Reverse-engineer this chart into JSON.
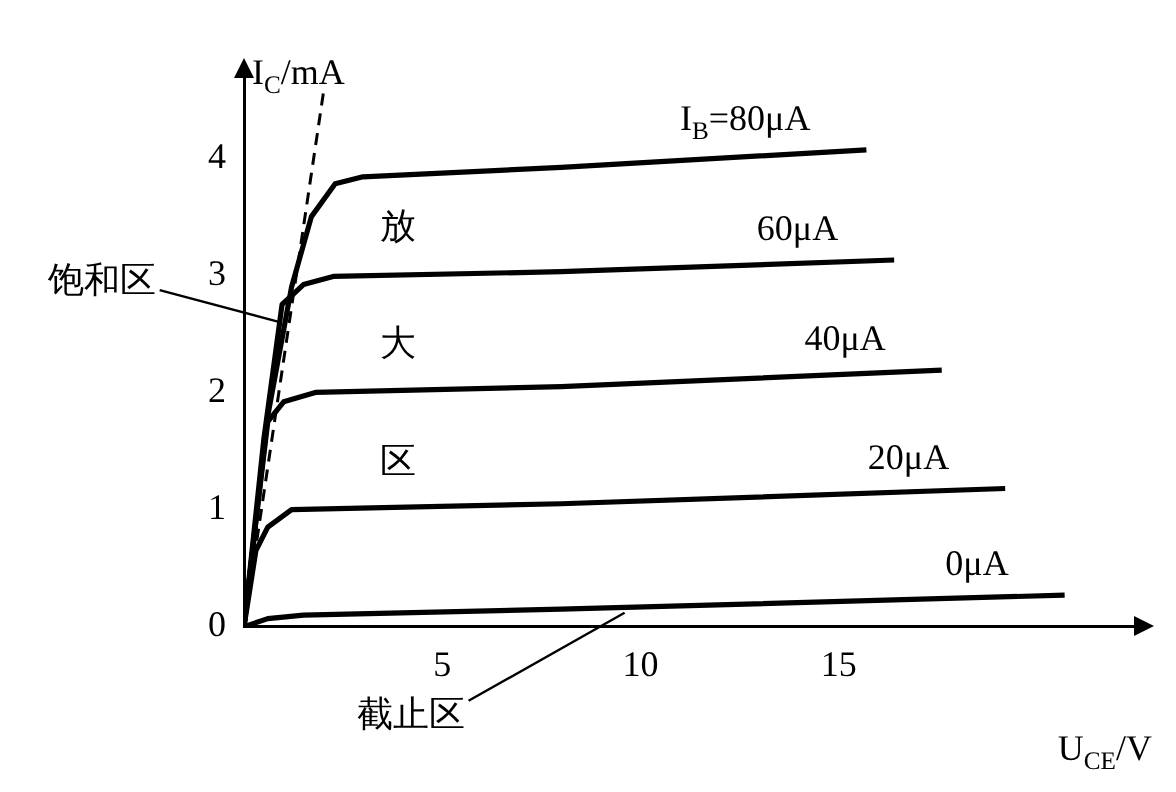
{
  "chart_data": {
    "type": "line",
    "xlabel": "U$_{CE}$/V",
    "ylabel": "I$_{C}$/mA",
    "xlim": [
      0,
      22.5
    ],
    "ylim": [
      0,
      4.7
    ],
    "xticks": [
      5,
      10,
      15
    ],
    "yticks": [
      0,
      1,
      2,
      3,
      4
    ],
    "grid": false,
    "legend": false,
    "marker": "none",
    "series": [
      {
        "name": "I$_{B}$=80μA",
        "color": "#000000",
        "x": [
          0,
          0.6,
          1.2,
          1.7,
          2.3,
          3.0,
          8,
          15.7
        ],
        "values": [
          0,
          1.8,
          2.9,
          3.5,
          3.78,
          3.84,
          3.92,
          4.07
        ]
      },
      {
        "name": "60μA",
        "color": "#000000",
        "x": [
          0,
          0.5,
          0.96,
          1.5,
          2.25,
          8,
          16.4
        ],
        "values": [
          0,
          1.6,
          2.75,
          2.92,
          2.99,
          3.03,
          3.13
        ]
      },
      {
        "name": "40μA",
        "color": "#000000",
        "x": [
          0,
          0.3,
          0.6,
          1.0,
          1.8,
          8,
          17.6
        ],
        "values": [
          0,
          0.9,
          1.75,
          1.92,
          2.0,
          2.05,
          2.19
        ]
      },
      {
        "name": "20μA",
        "color": "#000000",
        "x": [
          0,
          0.3,
          0.6,
          1.2,
          8,
          19.2
        ],
        "values": [
          0,
          0.65,
          0.85,
          1.0,
          1.05,
          1.18
        ]
      },
      {
        "name": "0μA",
        "color": "#000000",
        "x": [
          0,
          0.6,
          1.5,
          8,
          20.7
        ],
        "values": [
          0,
          0.07,
          0.1,
          0.15,
          0.27
        ]
      },
      {
        "type": "line",
        "line_style": "dashed",
        "color": "#000000",
        "x": [
          2.0,
          0
        ],
        "values": [
          4.55,
          0
        ]
      }
    ],
    "annotations": [
      {
        "text": "饱和区",
        "x": 0.9,
        "y": 2.6
      },
      {
        "text": "截止区",
        "x": 9.6,
        "y": 0.12
      },
      "放",
      "大",
      "区"
    ]
  }
}
